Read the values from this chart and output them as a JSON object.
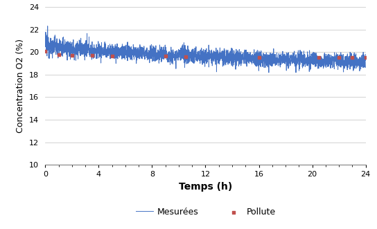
{
  "title": "",
  "xlabel": "Temps (h)",
  "ylabel": "Concentration O2 (%)",
  "xlim": [
    0,
    24
  ],
  "ylim": [
    10,
    24
  ],
  "yticks": [
    10,
    12,
    14,
    16,
    18,
    20,
    22,
    24
  ],
  "xticks": [
    0,
    4,
    8,
    12,
    16,
    20,
    24
  ],
  "line_color": "#4472C4",
  "pollute_color": "#C0504D",
  "background_color": "#FFFFFF",
  "plot_bg_color": "#FFFFFF",
  "grid_color": "#C0C0C0",
  "legend_labels": [
    "Mesurées",
    "Pollute"
  ],
  "mesures_start": 20.8,
  "mesures_end": 19.1,
  "noise_amplitude": 0.35,
  "pollute_points_x": [
    0.0,
    1.0,
    2.0,
    3.5,
    5.0,
    9.0,
    10.5,
    16.0,
    20.5,
    22.0,
    23.0,
    24.0
  ],
  "pollute_points_y": [
    20.05,
    19.75,
    19.72,
    19.68,
    19.65,
    19.62,
    19.6,
    19.55,
    19.52,
    19.5,
    19.5,
    19.5
  ],
  "xlabel_fontsize": 10,
  "ylabel_fontsize": 9,
  "tick_fontsize": 8,
  "legend_fontsize": 9,
  "line_width": 0.7
}
